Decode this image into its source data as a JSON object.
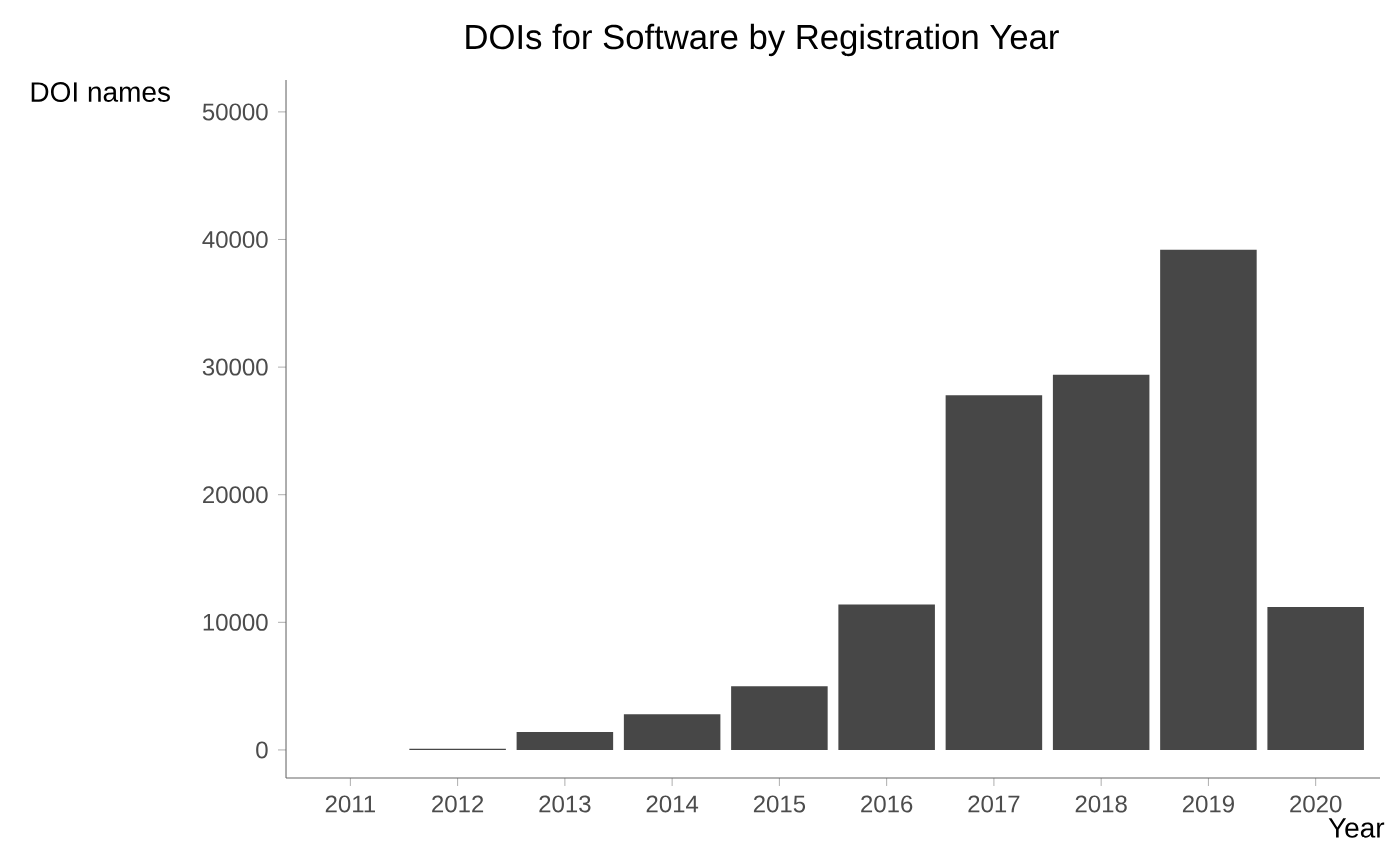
{
  "chart_data": {
    "type": "bar",
    "title": "DOIs for Software by Registration Year",
    "xlabel": "Year",
    "ylabel": "DOI names",
    "categories": [
      "2011",
      "2012",
      "2013",
      "2014",
      "2015",
      "2016",
      "2017",
      "2018",
      "2019",
      "2020"
    ],
    "values": [
      0,
      100,
      1400,
      2800,
      5000,
      11400,
      27800,
      29400,
      39200,
      11200
    ],
    "color": "#474747",
    "ylim": [
      -2200,
      52500
    ],
    "yticks": [
      0,
      10000,
      20000,
      30000,
      40000,
      50000
    ],
    "grid": false
  }
}
